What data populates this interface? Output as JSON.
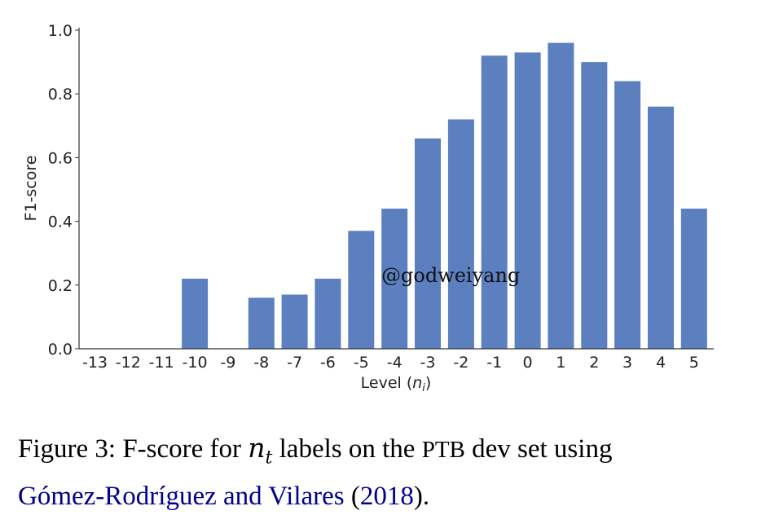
{
  "chart_data": {
    "type": "bar",
    "categories": [
      "-13",
      "-12",
      "-11",
      "-10",
      "-9",
      "-8",
      "-7",
      "-6",
      "-5",
      "-4",
      "-3",
      "-2",
      "-1",
      "0",
      "1",
      "2",
      "3",
      "4",
      "5"
    ],
    "values": [
      0,
      0,
      0,
      0.22,
      0,
      0.16,
      0.17,
      0.22,
      0.37,
      0.44,
      0.66,
      0.72,
      0.92,
      0.93,
      0.96,
      0.9,
      0.84,
      0.76,
      0.44
    ],
    "xlabel": "Level (n_i)",
    "ylabel": "F1-score",
    "ylim": [
      0,
      1.0
    ],
    "yticks": [
      "0.0",
      "0.2",
      "0.4",
      "0.6",
      "0.8",
      "1.0"
    ],
    "bar_color": "#5b7fbf",
    "grid": false
  },
  "watermark": "@godweiyang",
  "caption": {
    "prefix": "Figure 3:  F-score for ",
    "math": "n",
    "math_sub": "t",
    "mid": " labels on the ",
    "smallcaps": "PTB",
    "suffix": " dev set using",
    "citation": "Gómez-Rodríguez and Vilares",
    "year_open": " (",
    "year": "2018",
    "year_close": ").",
    "citation_color": "#00008b"
  }
}
